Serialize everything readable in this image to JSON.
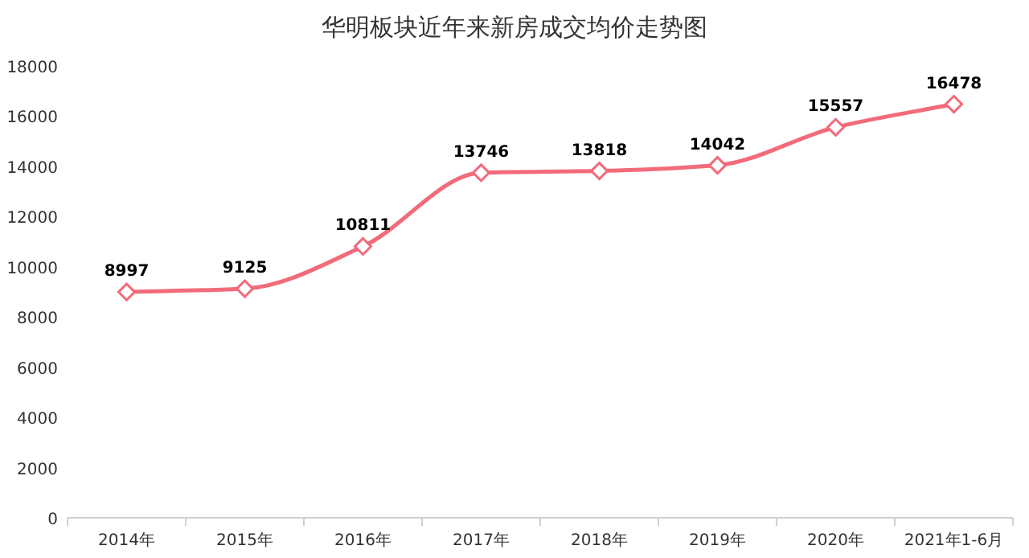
{
  "chart_data": {
    "type": "line",
    "title": "华明板块近年来新房成交均价走势图",
    "categories": [
      "2014年",
      "2015年",
      "2016年",
      "2017年",
      "2018年",
      "2019年",
      "2020年",
      "2021年1-6月"
    ],
    "series": [
      {
        "color": "#f26b7a",
        "values": [
          8997,
          9125,
          10811,
          13746,
          13818,
          14042,
          15557,
          16478
        ]
      }
    ],
    "ylim": [
      0,
      18000
    ],
    "yticks": [
      0,
      2000,
      4000,
      6000,
      8000,
      10000,
      12000,
      14000,
      16000,
      18000
    ],
    "marker": "diamond",
    "line_style": "solid",
    "data_labels": true,
    "grid": false
  }
}
